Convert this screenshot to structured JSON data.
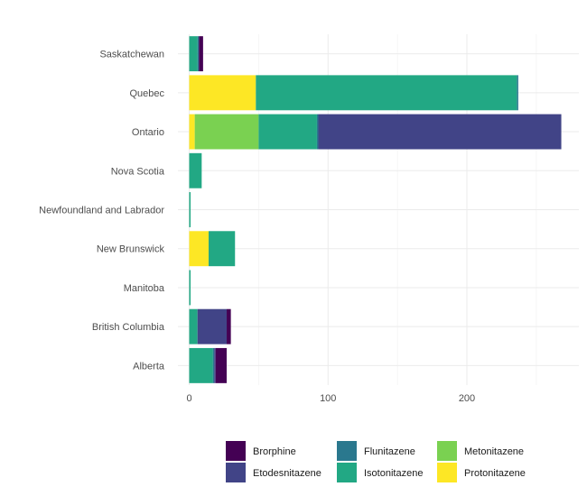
{
  "chart_data": {
    "type": "bar",
    "orientation": "horizontal",
    "stacked": true,
    "title": "",
    "xlabel": "",
    "ylabel": "",
    "xlim": [
      0,
      280
    ],
    "x_ticks": [
      0,
      100,
      200
    ],
    "grid": true,
    "legend_position": "bottom",
    "categories": [
      "Saskatchewan",
      "Quebec",
      "Ontario",
      "Nova Scotia",
      "Newfoundland and Labrador",
      "New Brunswick",
      "Manitoba",
      "British Columbia",
      "Alberta"
    ],
    "series": [
      {
        "name": "Protonitazene",
        "color": "#FDE725",
        "values": [
          0,
          48,
          4,
          0,
          0,
          14,
          0,
          0,
          0
        ]
      },
      {
        "name": "Metonitazene",
        "color": "#7AD151",
        "values": [
          0,
          0,
          46,
          0,
          0,
          0,
          0,
          0,
          0
        ]
      },
      {
        "name": "Isotonitazene",
        "color": "#22A884",
        "values": [
          6,
          188,
          42,
          9,
          1,
          19,
          1,
          6,
          17
        ]
      },
      {
        "name": "Flunitazene",
        "color": "#2A788E",
        "values": [
          1,
          1,
          1,
          0,
          0,
          0,
          0,
          0,
          1
        ]
      },
      {
        "name": "Etodesnitazene",
        "color": "#414487",
        "values": [
          0,
          0,
          175,
          0,
          0,
          0,
          0,
          21,
          1
        ]
      },
      {
        "name": "Brorphine",
        "color": "#440154",
        "values": [
          3,
          0,
          0,
          0,
          0,
          0,
          0,
          3,
          8
        ]
      }
    ],
    "legend_order": [
      "Brorphine",
      "Flunitazene",
      "Metonitazene",
      "Etodesnitazene",
      "Isotonitazene",
      "Protonitazene"
    ]
  }
}
